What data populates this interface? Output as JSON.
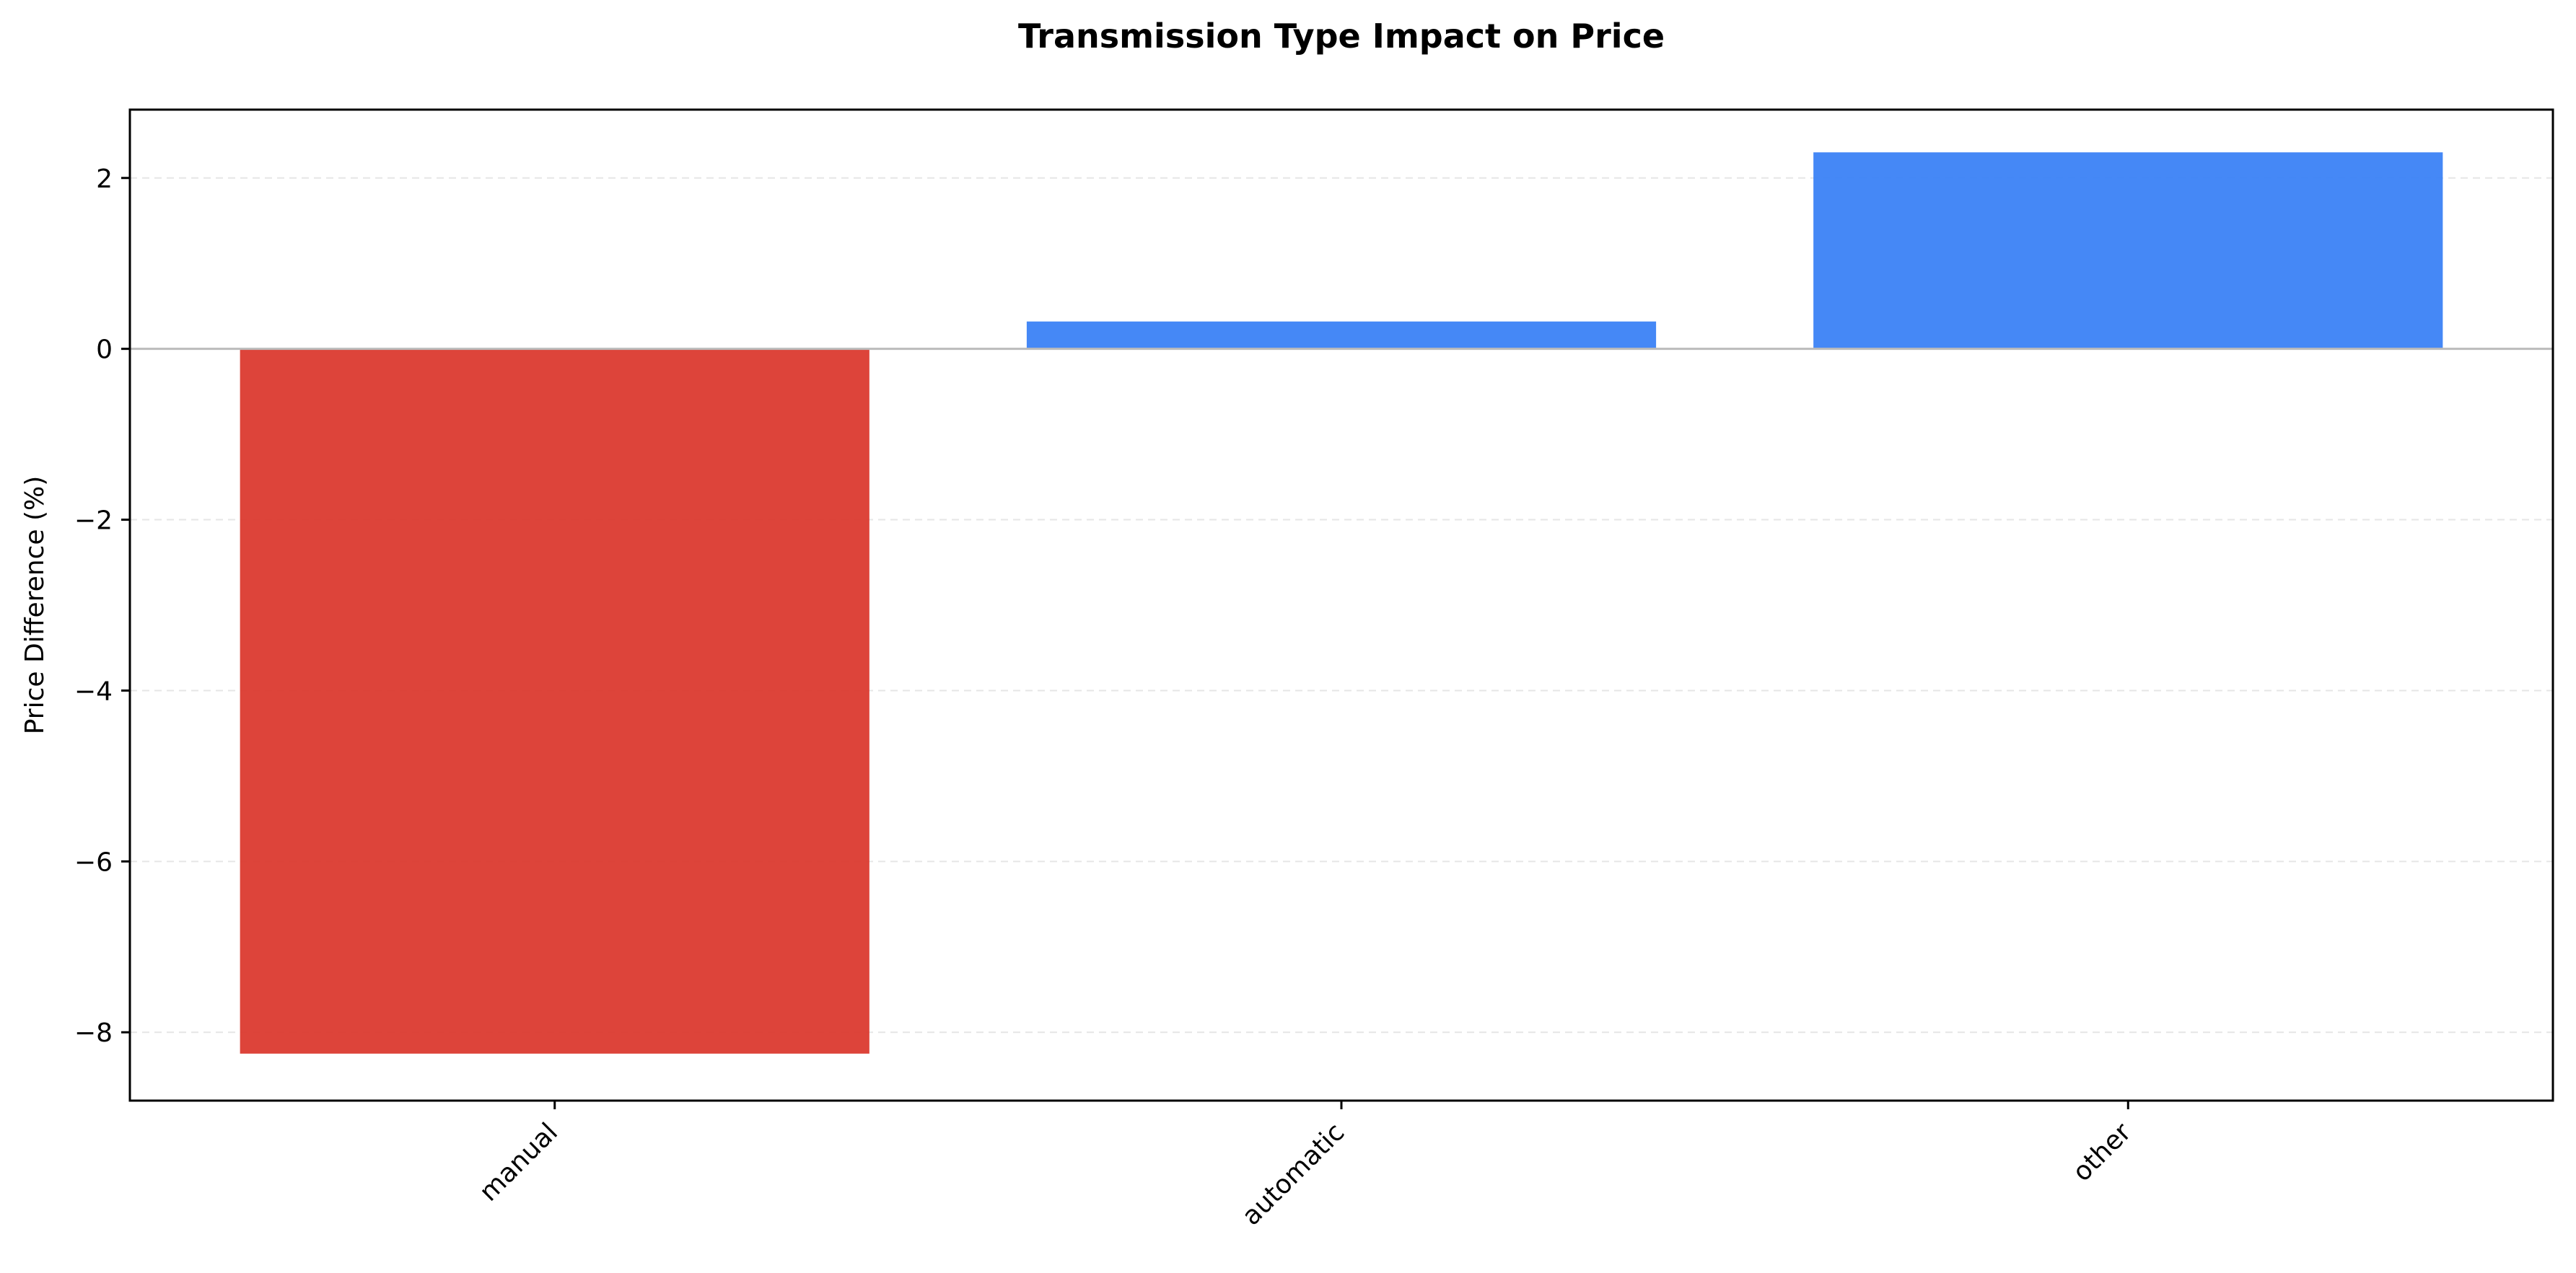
{
  "chart_data": {
    "type": "bar",
    "title": "Transmission Type Impact on Price",
    "xlabel": "",
    "ylabel": "Price Difference (%)",
    "categories": [
      "manual",
      "automatic",
      "other"
    ],
    "values": [
      -8.25,
      0.32,
      2.3
    ],
    "ylim": [
      -8.8,
      2.8
    ],
    "yticks": [
      -8,
      -6,
      -4,
      -2,
      0,
      2
    ],
    "ytick_labels": [
      "−8",
      "−6",
      "−4",
      "−2",
      "0",
      "2"
    ],
    "grid": {
      "y": true,
      "x": false,
      "style": "dashed"
    },
    "colors": {
      "negative": "#DB3A2F",
      "positive": "#3B82F6",
      "zero_line": "#BBBBBB",
      "grid": "#E6E6E6"
    },
    "legend": "none"
  }
}
